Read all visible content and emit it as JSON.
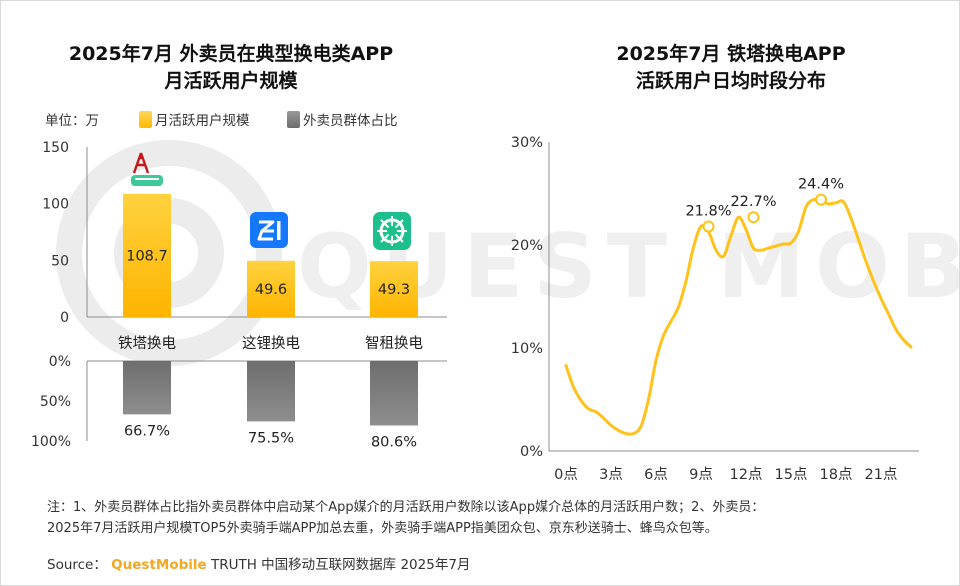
{
  "left_chart": {
    "title_line1": "2025年7月 外卖员在典型换电类APP",
    "title_line2": "月活跃用户规模",
    "unit_label": "单位：万",
    "legend_bar_label": "月活跃用户规模",
    "legend_share_label": "外卖员群体占比",
    "colors": {
      "bar": "#FFC21A",
      "bar_light": "#FFD65C",
      "share": "#808080"
    }
  },
  "right_chart": {
    "title_line1": "2025年7月 铁塔换电APP",
    "title_line2": "活跃用户日均时段分布",
    "color": "#FFC21A"
  },
  "chart_data": [
    {
      "type": "bar",
      "categories": [
        "铁塔换电",
        "这锂换电",
        "智租换电"
      ],
      "series": [
        {
          "name": "月活跃用户规模",
          "values": [
            108.7,
            49.6,
            49.3
          ],
          "labels": [
            "108.7",
            "49.6",
            "49.3"
          ]
        }
      ],
      "ylim": [
        0,
        150
      ],
      "yticks": [
        "0",
        "50",
        "100",
        "150"
      ],
      "icons": [
        "tower-logo-icon",
        "zheli-logo-icon",
        "zhizu-logo-icon"
      ]
    },
    {
      "type": "bar",
      "orientation": "down",
      "categories": [
        "铁塔换电",
        "这锂换电",
        "智租换电"
      ],
      "series": [
        {
          "name": "外卖员群体占比",
          "values": [
            66.7,
            75.5,
            80.6
          ],
          "labels": [
            "66.7%",
            "75.5%",
            "80.6%"
          ]
        }
      ],
      "ylim": [
        0,
        100
      ],
      "yticks": [
        "0%",
        "50%",
        "100%"
      ]
    },
    {
      "type": "line",
      "x": [
        0,
        0.5,
        1,
        1.5,
        2,
        2.5,
        3,
        3.5,
        4,
        4.5,
        5,
        5.5,
        6,
        6.5,
        7,
        7.5,
        8,
        8.5,
        9,
        9.5,
        10,
        10.5,
        11,
        11.5,
        12,
        12.5,
        13,
        13.5,
        14,
        14.5,
        15,
        15.5,
        16,
        16.5,
        17,
        17.5,
        18,
        18.5,
        19,
        19.5,
        20,
        20.5,
        21,
        21.5,
        22,
        22.5,
        23
      ],
      "values": [
        8.3,
        6.2,
        4.9,
        4.1,
        3.8,
        3.2,
        2.5,
        2.0,
        1.7,
        1.7,
        2.4,
        5.0,
        8.8,
        11.2,
        12.6,
        14.0,
        16.5,
        19.8,
        21.8,
        21.3,
        19.5,
        18.9,
        20.9,
        22.7,
        21.5,
        19.7,
        19.5,
        19.7,
        19.9,
        20.1,
        20.2,
        21.3,
        23.7,
        24.4,
        24.3,
        24.0,
        24.1,
        24.2,
        22.6,
        20.5,
        18.4,
        16.5,
        14.8,
        13.3,
        11.8,
        10.8,
        10.1
      ],
      "highlights": [
        {
          "x": 9.5,
          "value": 21.8,
          "label": "21.8%"
        },
        {
          "x": 12.5,
          "value": 22.7,
          "label": "22.7%"
        },
        {
          "x": 17,
          "value": 24.4,
          "label": "24.4%"
        }
      ],
      "xticks": [
        "0点",
        "3点",
        "6点",
        "9点",
        "12点",
        "15点",
        "18点",
        "21点"
      ],
      "xtick_values": [
        0,
        3,
        6,
        9,
        12,
        15,
        18,
        21
      ],
      "ylim": [
        0,
        30
      ],
      "yticks": [
        "0%",
        "10%",
        "20%",
        "30%"
      ],
      "ytick_values": [
        0,
        10,
        20,
        30
      ]
    }
  ],
  "footer": {
    "note_line1": "注：1、外卖员群体占比指外卖员群体中启动某个App媒介的月活跃用户数除以该App媒介总体的月活跃用户数；2、外卖员：",
    "note_line2": "2025年7月活跃用户规模TOP5外卖骑手端APP加总去重，外卖骑手端APP指美团众包、京东秒送骑士、蜂鸟众包等。",
    "source_label": "Source：",
    "source_brand": "QuestMobile",
    "source_rest": "TRUTH 中国移动互联网数据库 2025年7月"
  },
  "watermark": {
    "text": "QUEST MOBILE",
    "color": "#EBEBEB"
  }
}
